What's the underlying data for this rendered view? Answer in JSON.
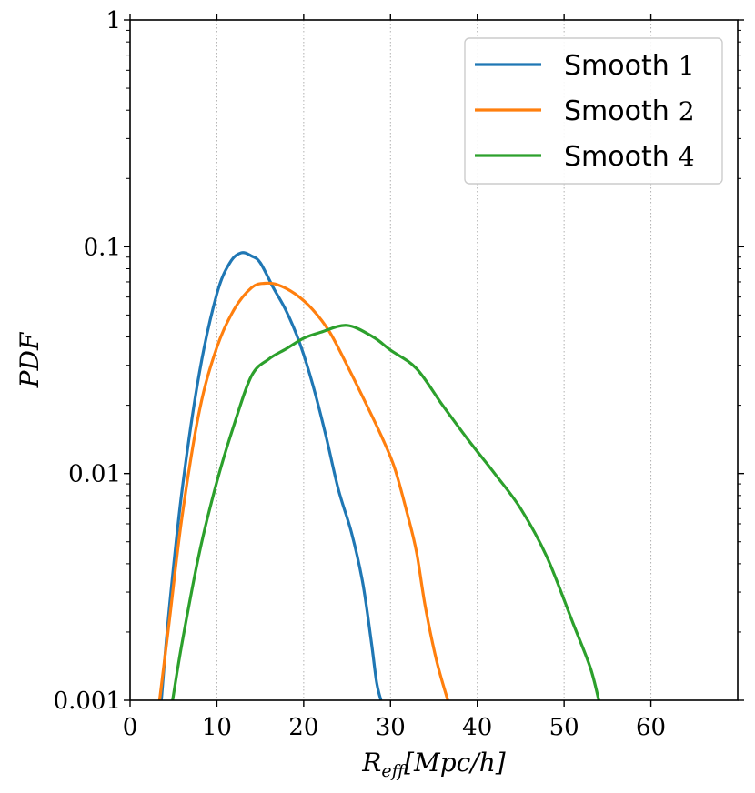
{
  "chart_data": {
    "type": "line",
    "xlabel": "R_eff[Mpc/h]",
    "ylabel": "PDF",
    "xlim": [
      0,
      70
    ],
    "ylim": [
      0.001,
      1
    ],
    "yscale": "log",
    "grid": "x dotted",
    "legend_position": "top-right",
    "x_ticks": [
      "0",
      "10",
      "20",
      "30",
      "40",
      "50",
      "60"
    ],
    "y_ticks": [
      "0.001",
      "0.01",
      "0.1",
      "1"
    ],
    "series": [
      {
        "name": "Smooth 1",
        "legend_word": "Smooth",
        "legend_num": "1",
        "color": "#1f77b4",
        "x": [
          3.6,
          4.5,
          6,
          8,
          10,
          11.5,
          12.8,
          14,
          15,
          16.5,
          18,
          19.5,
          21,
          22.5,
          24,
          25.5,
          26.8,
          27.8,
          28.4,
          28.9
        ],
        "y": [
          0.001,
          0.0025,
          0.0085,
          0.028,
          0.062,
          0.085,
          0.094,
          0.091,
          0.085,
          0.066,
          0.052,
          0.038,
          0.025,
          0.015,
          0.0085,
          0.0055,
          0.0033,
          0.0018,
          0.0012,
          0.001
        ]
      },
      {
        "name": "Smooth 2",
        "legend_word": "Smooth",
        "legend_num": "2",
        "color": "#ff7f0e",
        "x": [
          3.4,
          4.5,
          6,
          8,
          10,
          12,
          14,
          15.5,
          17,
          19,
          21,
          23,
          25,
          27,
          29,
          30.5,
          32,
          33,
          34,
          35.3,
          36.6
        ],
        "y": [
          0.001,
          0.0022,
          0.0065,
          0.019,
          0.036,
          0.053,
          0.066,
          0.069,
          0.068,
          0.062,
          0.053,
          0.042,
          0.03,
          0.021,
          0.0145,
          0.0105,
          0.0065,
          0.0045,
          0.0026,
          0.0015,
          0.001
        ]
      },
      {
        "name": "Smooth 4",
        "legend_word": "Smooth",
        "legend_num": "4",
        "color": "#2ca02c",
        "x": [
          4.9,
          6,
          8,
          10,
          12,
          14,
          16,
          18,
          20,
          22,
          25,
          28,
          30,
          33,
          36,
          39,
          42,
          45,
          48,
          51,
          53,
          54
        ],
        "y": [
          0.001,
          0.0018,
          0.0045,
          0.0092,
          0.0165,
          0.027,
          0.032,
          0.0355,
          0.0395,
          0.042,
          0.045,
          0.04,
          0.035,
          0.029,
          0.02,
          0.014,
          0.01,
          0.007,
          0.0043,
          0.0022,
          0.0014,
          0.001
        ]
      }
    ]
  }
}
